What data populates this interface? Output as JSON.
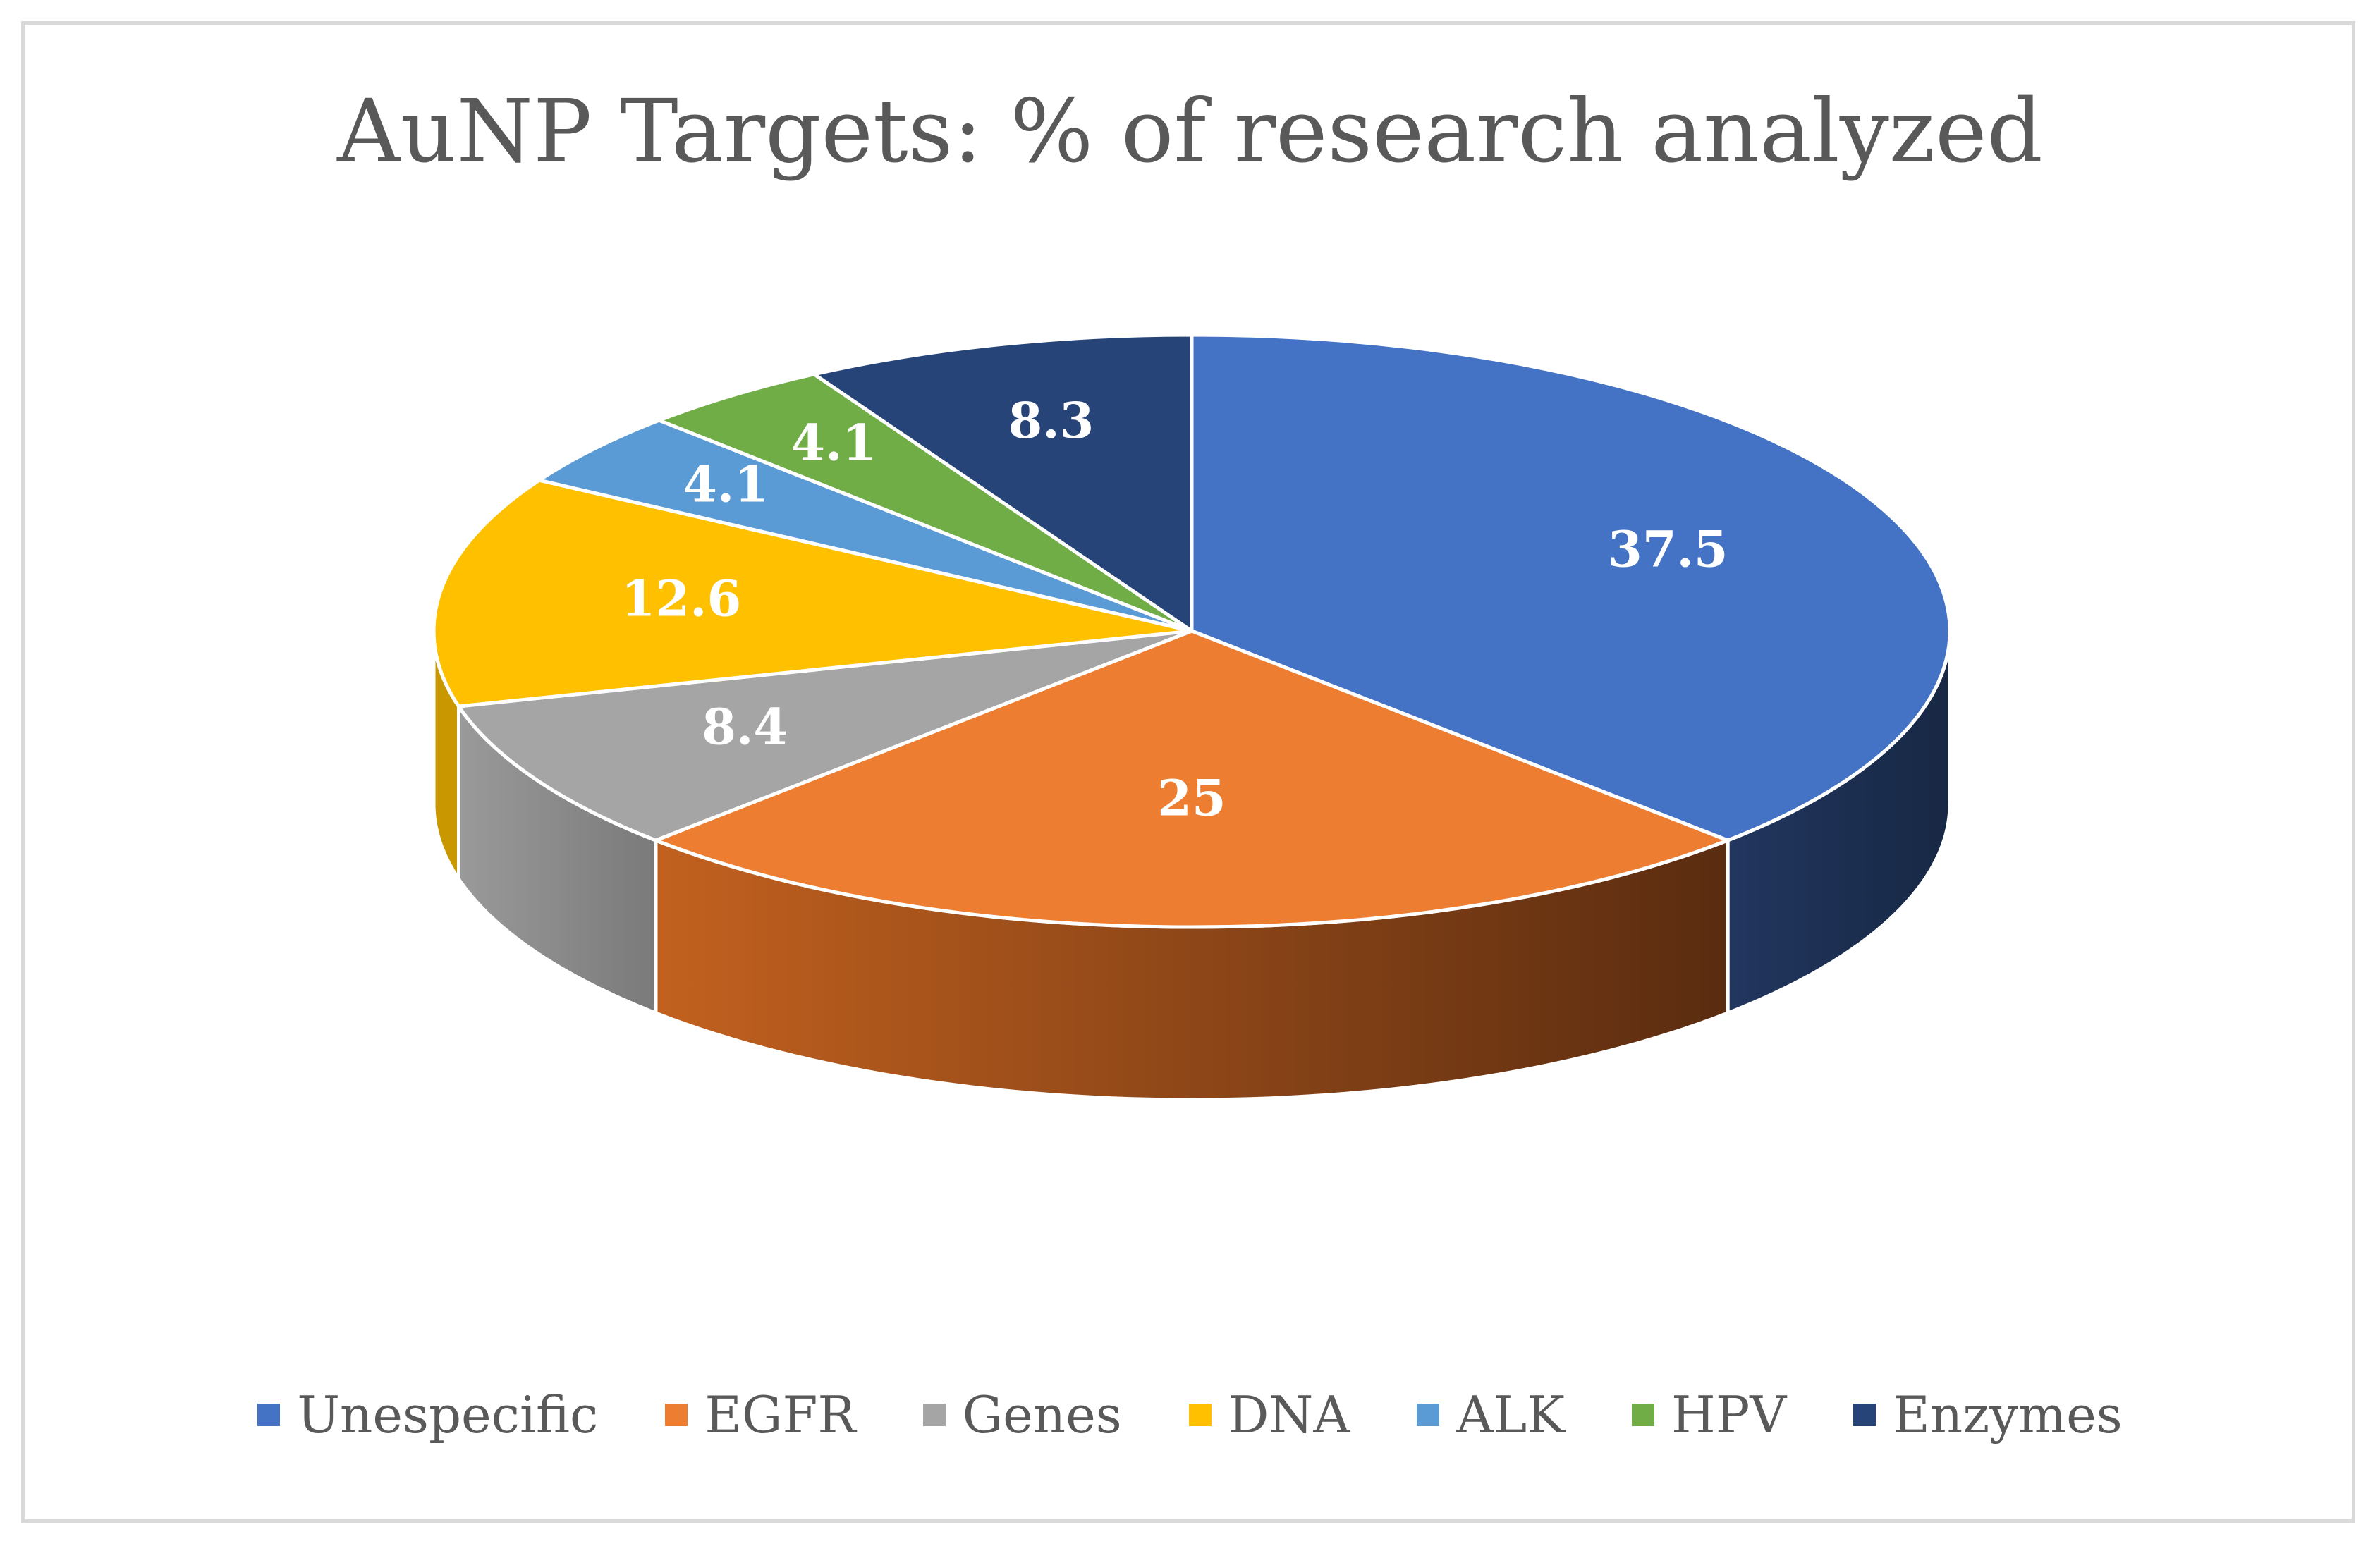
{
  "chart_data": {
    "type": "pie",
    "title": "AuNP Targets: % of research analyzed",
    "categories": [
      "Unespecific",
      "EGFR",
      "Genes",
      "DNA",
      "ALK",
      "HPV",
      "Enzymes"
    ],
    "values": [
      37.5,
      25,
      8.4,
      12.6,
      4.1,
      4.1,
      8.3
    ],
    "data_labels": [
      "37.5",
      "25",
      "8.4",
      "12.6",
      "4.1",
      "4.1",
      "8.3"
    ],
    "colors": [
      "#4472c4",
      "#ed7d31",
      "#a5a5a5",
      "#ffc000",
      "#5b9bd5",
      "#70ad47",
      "#264478"
    ],
    "side_colors": [
      "#1c2b4f",
      "#5e2d10",
      "#8c8c8c",
      "#c99800",
      "#3f78b0",
      "#4f7f31",
      "#1a2e55"
    ],
    "legend_placement": "bottom",
    "style": "3d-pie"
  }
}
